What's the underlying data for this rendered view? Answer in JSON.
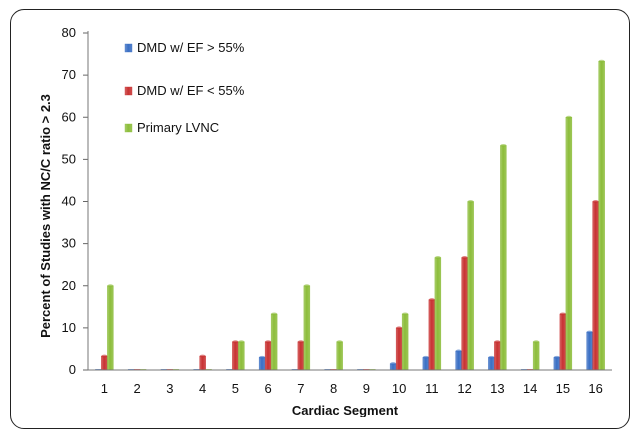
{
  "chart_data": {
    "type": "bar",
    "title": "",
    "xlabel": "Cardiac Segment",
    "ylabel": "Percent of Studies with  NC/C ratio > 2.3",
    "ylim": [
      0,
      80
    ],
    "yticks": [
      0,
      10,
      20,
      30,
      40,
      50,
      60,
      70,
      80
    ],
    "categories": [
      "1",
      "2",
      "3",
      "4",
      "5",
      "6",
      "7",
      "8",
      "9",
      "10",
      "11",
      "12",
      "13",
      "14",
      "15",
      "16"
    ],
    "series": [
      {
        "name": "DMD w/ EF > 55%",
        "color": "#3a6fc4",
        "values": [
          0,
          0,
          0,
          0,
          0,
          3,
          0,
          0,
          0,
          1.5,
          3,
          4.5,
          3,
          0,
          3,
          9
        ]
      },
      {
        "name": "DMD w/ EF < 55%",
        "color": "#c83232",
        "values": [
          3.3,
          0,
          0,
          3.3,
          6.7,
          6.7,
          6.7,
          0,
          0,
          10,
          16.7,
          26.7,
          6.7,
          0,
          13.3,
          40
        ]
      },
      {
        "name": "Primary LVNC",
        "color": "#8cbd3a",
        "values": [
          20,
          0,
          0,
          0,
          6.7,
          13.3,
          20,
          6.7,
          0,
          13.3,
          26.7,
          40,
          53.3,
          6.7,
          60,
          73.3
        ]
      }
    ],
    "legend_position": "top-left",
    "grid": false
  }
}
